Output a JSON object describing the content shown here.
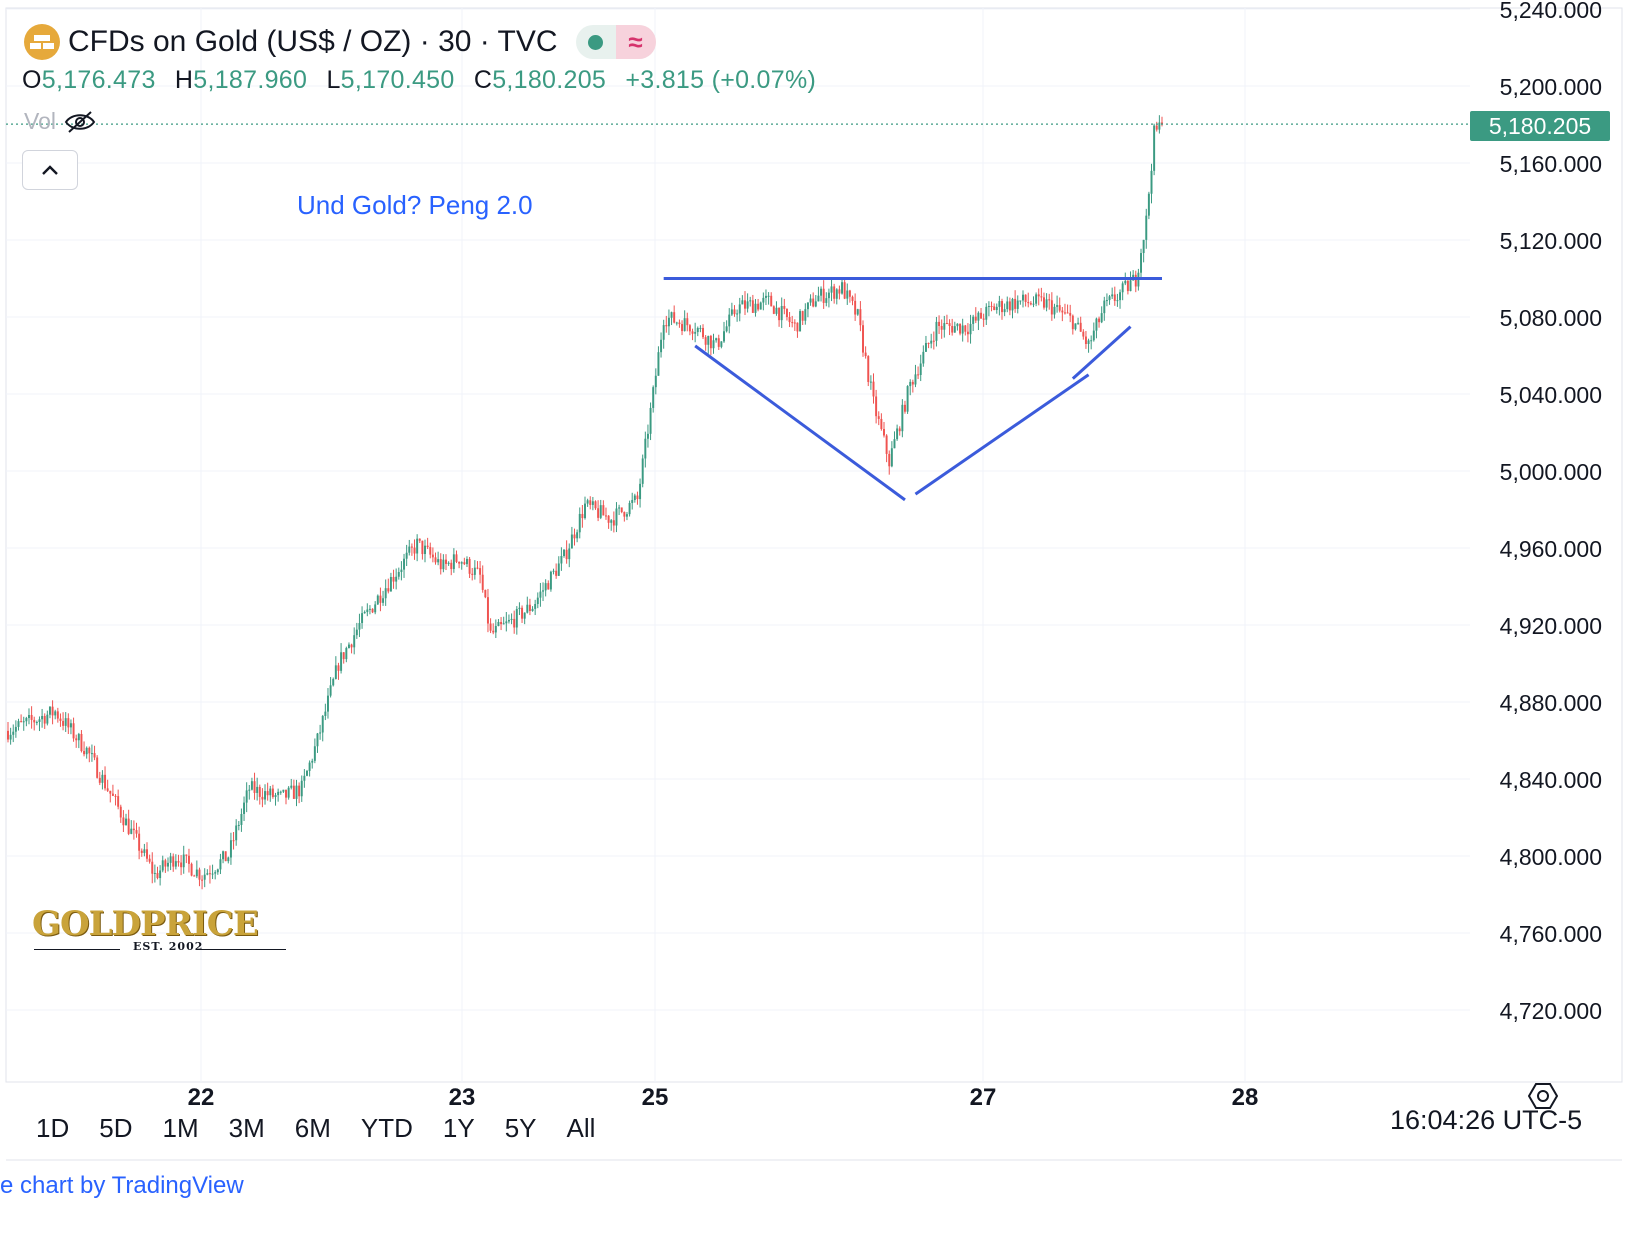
{
  "header": {
    "title": "CFDs on Gold (US$ / OZ) · 30 · TVC",
    "ohlc": {
      "o_label": "O",
      "o_value": "5,176.473",
      "h_label": "H",
      "h_value": "5,187.960",
      "l_label": "L",
      "l_value": "5,170.450",
      "c_label": "C",
      "c_value": "5,180.205",
      "change": "+3.815 (+0.07%)"
    },
    "vol_label": "Vol"
  },
  "annotation": "Und Gold? Peng 2.0",
  "watermark": {
    "word": "GOLDPRICE",
    "est": "EST. 2002"
  },
  "range_buttons": [
    "1D",
    "5D",
    "1M",
    "3M",
    "6M",
    "YTD",
    "1Y",
    "5Y",
    "All"
  ],
  "clock": "16:04:26 UTC-5",
  "footer": "e chart by TradingView",
  "colors": {
    "up": "#3b9a82",
    "down": "#ef5350",
    "drawing": "#3b5bdb",
    "annotation": "#2962ff"
  },
  "chart_data": {
    "type": "candlestick",
    "interval": "30",
    "symbol": "CFDs on Gold (US$ / OZ)",
    "last_price": 5180.205,
    "last_price_label": "5,180.205",
    "ylim": [
      4700,
      5240
    ],
    "y_ticks": [
      4720,
      4760,
      4800,
      4840,
      4880,
      4920,
      4960,
      5000,
      5040,
      5080,
      5120,
      5160,
      5200,
      5240
    ],
    "y_tick_labels": [
      "4,720.000",
      "4,760.000",
      "4,800.000",
      "4,840.000",
      "4,880.000",
      "4,920.000",
      "4,960.000",
      "5,000.000",
      "5,040.000",
      "5,080.000",
      "5,120.000",
      "5,160.000",
      "5,200.000",
      "5,240.000"
    ],
    "x_tick_labels": [
      "22",
      "23",
      "25",
      "27",
      "28"
    ],
    "grid": true,
    "path_anchors": [
      [
        0,
        4865
      ],
      [
        18,
        4875
      ],
      [
        30,
        4855
      ],
      [
        38,
        4835
      ],
      [
        48,
        4810
      ],
      [
        56,
        4790
      ],
      [
        64,
        4800
      ],
      [
        74,
        4790
      ],
      [
        84,
        4800
      ],
      [
        92,
        4835
      ],
      [
        104,
        4830
      ],
      [
        112,
        4835
      ],
      [
        118,
        4860
      ],
      [
        126,
        4900
      ],
      [
        134,
        4920
      ],
      [
        144,
        4940
      ],
      [
        156,
        4962
      ],
      [
        166,
        4950
      ],
      [
        172,
        4955
      ],
      [
        180,
        4945
      ],
      [
        184,
        4915
      ],
      [
        190,
        4920
      ],
      [
        200,
        4930
      ],
      [
        212,
        4955
      ],
      [
        220,
        4982
      ],
      [
        230,
        4975
      ],
      [
        240,
        4985
      ],
      [
        246,
        5040
      ],
      [
        250,
        5080
      ],
      [
        262,
        5075
      ],
      [
        270,
        5065
      ],
      [
        278,
        5085
      ],
      [
        290,
        5088
      ],
      [
        300,
        5075
      ],
      [
        308,
        5090
      ],
      [
        318,
        5095
      ],
      [
        324,
        5080
      ],
      [
        330,
        5035
      ],
      [
        336,
        5005
      ],
      [
        344,
        5045
      ],
      [
        354,
        5075
      ],
      [
        366,
        5075
      ],
      [
        376,
        5085
      ],
      [
        386,
        5088
      ],
      [
        396,
        5087
      ],
      [
        406,
        5078
      ],
      [
        412,
        5065
      ],
      [
        418,
        5085
      ],
      [
        424,
        5092
      ],
      [
        430,
        5100
      ],
      [
        434,
        5130
      ],
      [
        437,
        5175
      ],
      [
        440,
        5180
      ]
    ],
    "candle_count": 441,
    "drawings": {
      "resistance": {
        "x": [
          250,
          440
        ],
        "y": [
          5100,
          5100
        ]
      },
      "pattern": [
        {
          "x": [
            262,
            342
          ],
          "y": [
            5065,
            4985
          ]
        },
        {
          "x": [
            346,
            412
          ],
          "y": [
            4988,
            5050
          ]
        },
        {
          "x": [
            406,
            428
          ],
          "y": [
            5048,
            5075
          ]
        }
      ]
    }
  }
}
